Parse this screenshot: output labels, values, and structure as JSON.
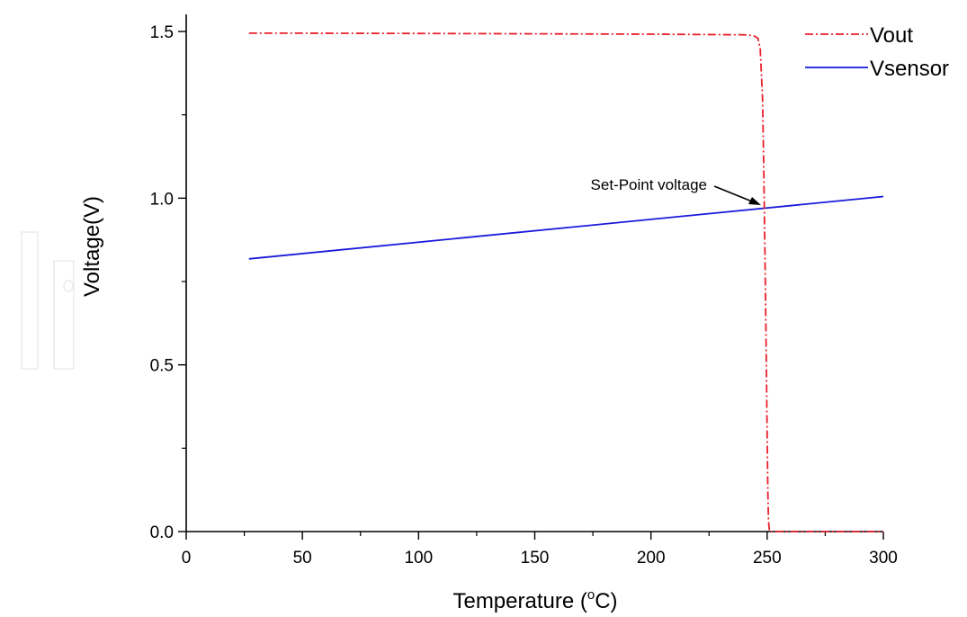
{
  "chart_data": {
    "type": "line",
    "title": "",
    "xlabel": "Temperature (",
    "xlabel_sup": "o",
    "xlabel_suffix": "C)",
    "ylabel": "Voltage(V)",
    "xlim": [
      0,
      300
    ],
    "ylim": [
      0,
      1.5
    ],
    "x_ticks": [
      0,
      50,
      100,
      150,
      200,
      250,
      300
    ],
    "x_tick_labels": [
      "0",
      "50",
      "100",
      "150",
      "200",
      "250",
      "300"
    ],
    "y_ticks": [
      0.0,
      0.5,
      1.0,
      1.5
    ],
    "y_tick_labels": [
      "0.0",
      "0.5",
      "1.0",
      "1.5"
    ],
    "grid": false,
    "legend_position": "top-right",
    "series": [
      {
        "name": "Vout",
        "color": "#e8202a",
        "style": "dash-dot",
        "x": [
          27,
          50,
          100,
          150,
          200,
          240,
          244,
          246,
          247,
          248,
          248.5,
          249,
          249.5,
          250,
          250.3,
          250.6,
          251,
          260,
          300
        ],
        "y": [
          1.495,
          1.495,
          1.494,
          1.493,
          1.492,
          1.49,
          1.488,
          1.48,
          1.45,
          1.3,
          1.1,
          0.85,
          0.6,
          0.3,
          0.12,
          0.03,
          0.0,
          0.0,
          0.0
        ]
      },
      {
        "name": "Vsensor",
        "color": "#1a1adc",
        "style": "solid",
        "x": [
          27,
          300
        ],
        "y": [
          0.818,
          1.005
        ]
      }
    ],
    "annotations": [
      {
        "text": "Set-Point voltage",
        "x": 250,
        "y": 0.97
      }
    ]
  }
}
